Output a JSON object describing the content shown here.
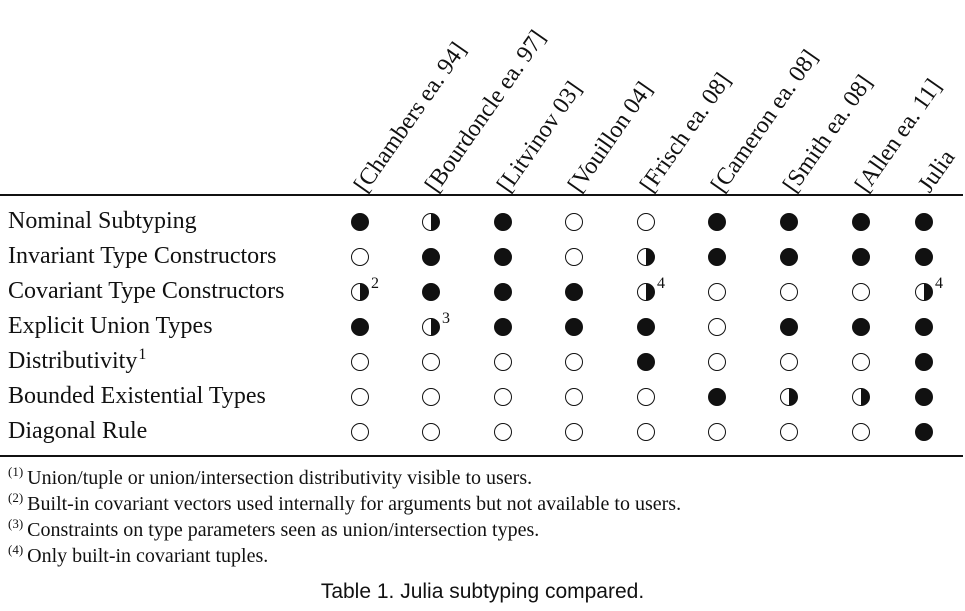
{
  "columns": [
    "[Chambers ea. 94]",
    "[Bourdoncle ea. 97]",
    "[Litvinov 03]",
    "[Vouillon 04]",
    "[Frisch ea. 08]",
    "[Cameron ea. 08]",
    "[Smith ea. 08]",
    "[Allen ea. 11]",
    "Julia"
  ],
  "rows": [
    {
      "label": "Nominal Subtyping",
      "label_note": "",
      "cells": [
        {
          "v": "full",
          "note": ""
        },
        {
          "v": "half",
          "note": ""
        },
        {
          "v": "full",
          "note": ""
        },
        {
          "v": "empty",
          "note": ""
        },
        {
          "v": "empty",
          "note": ""
        },
        {
          "v": "full",
          "note": ""
        },
        {
          "v": "full",
          "note": ""
        },
        {
          "v": "full",
          "note": ""
        },
        {
          "v": "full",
          "note": ""
        }
      ]
    },
    {
      "label": "Invariant Type Constructors",
      "label_note": "",
      "cells": [
        {
          "v": "empty",
          "note": ""
        },
        {
          "v": "full",
          "note": ""
        },
        {
          "v": "full",
          "note": ""
        },
        {
          "v": "empty",
          "note": ""
        },
        {
          "v": "half",
          "note": ""
        },
        {
          "v": "full",
          "note": ""
        },
        {
          "v": "full",
          "note": ""
        },
        {
          "v": "full",
          "note": ""
        },
        {
          "v": "full",
          "note": ""
        }
      ]
    },
    {
      "label": "Covariant Type Constructors",
      "label_note": "",
      "cells": [
        {
          "v": "half",
          "note": "2"
        },
        {
          "v": "full",
          "note": ""
        },
        {
          "v": "full",
          "note": ""
        },
        {
          "v": "full",
          "note": ""
        },
        {
          "v": "half",
          "note": "4"
        },
        {
          "v": "empty",
          "note": ""
        },
        {
          "v": "empty",
          "note": ""
        },
        {
          "v": "empty",
          "note": ""
        },
        {
          "v": "half",
          "note": "4"
        }
      ]
    },
    {
      "label": "Explicit Union Types",
      "label_note": "",
      "cells": [
        {
          "v": "full",
          "note": ""
        },
        {
          "v": "half",
          "note": "3"
        },
        {
          "v": "full",
          "note": ""
        },
        {
          "v": "full",
          "note": ""
        },
        {
          "v": "full",
          "note": ""
        },
        {
          "v": "empty",
          "note": ""
        },
        {
          "v": "full",
          "note": ""
        },
        {
          "v": "full",
          "note": ""
        },
        {
          "v": "full",
          "note": ""
        }
      ]
    },
    {
      "label": "Distributivity",
      "label_note": "1",
      "cells": [
        {
          "v": "empty",
          "note": ""
        },
        {
          "v": "empty",
          "note": ""
        },
        {
          "v": "empty",
          "note": ""
        },
        {
          "v": "empty",
          "note": ""
        },
        {
          "v": "full",
          "note": ""
        },
        {
          "v": "empty",
          "note": ""
        },
        {
          "v": "empty",
          "note": ""
        },
        {
          "v": "empty",
          "note": ""
        },
        {
          "v": "full",
          "note": ""
        }
      ]
    },
    {
      "label": "Bounded Existential Types",
      "label_note": "",
      "cells": [
        {
          "v": "empty",
          "note": ""
        },
        {
          "v": "empty",
          "note": ""
        },
        {
          "v": "empty",
          "note": ""
        },
        {
          "v": "empty",
          "note": ""
        },
        {
          "v": "empty",
          "note": ""
        },
        {
          "v": "full",
          "note": ""
        },
        {
          "v": "half",
          "note": ""
        },
        {
          "v": "half",
          "note": ""
        },
        {
          "v": "full",
          "note": ""
        }
      ]
    },
    {
      "label": "Diagonal Rule",
      "label_note": "",
      "cells": [
        {
          "v": "empty",
          "note": ""
        },
        {
          "v": "empty",
          "note": ""
        },
        {
          "v": "empty",
          "note": ""
        },
        {
          "v": "empty",
          "note": ""
        },
        {
          "v": "empty",
          "note": ""
        },
        {
          "v": "empty",
          "note": ""
        },
        {
          "v": "empty",
          "note": ""
        },
        {
          "v": "empty",
          "note": ""
        },
        {
          "v": "full",
          "note": ""
        }
      ]
    }
  ],
  "footnotes": [
    {
      "mark": "(1)",
      "text": "Union/tuple or union/intersection distributivity visible to users."
    },
    {
      "mark": "(2)",
      "text": "Built-in covariant vectors used internally for arguments but not available to users."
    },
    {
      "mark": "(3)",
      "text": "Constraints on type parameters seen as union/intersection types."
    },
    {
      "mark": "(4)",
      "text": "Only built-in covariant tuples."
    }
  ],
  "caption": "Table 1.  Julia subtyping compared."
}
